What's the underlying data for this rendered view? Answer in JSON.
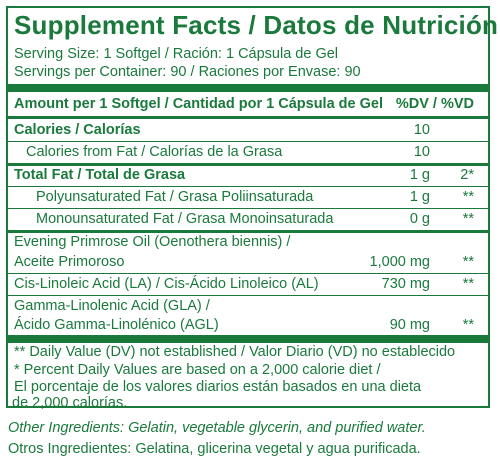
{
  "title": "Supplement Facts / Datos de Nutrición",
  "serving_size": "Serving Size: 1 Softgel / Ración: 1 Cápsula de Gel",
  "servings_per_container": "Servings per Container: 90 / Raciones por Envase: 90",
  "header": {
    "amount": "Amount per 1 Softgel / Cantidad por 1 Cápsula de Gel",
    "dv": "%DV / %VD"
  },
  "rows": [
    {
      "name": "Calories / Calorías",
      "amount": "10",
      "dv": ""
    },
    {
      "name": "Calories from Fat / Calorías de la Grasa",
      "amount": "10",
      "dv": ""
    },
    {
      "name": "Total Fat / Total de Grasa",
      "amount": "1 g",
      "dv": "2*"
    },
    {
      "name": "Polyunsaturated Fat / Grasa Poliinsaturada",
      "amount": "1 g",
      "dv": "**"
    },
    {
      "name": "Monounsaturated Fat / Grasa Monoinsaturada",
      "amount": "0 g",
      "dv": "**"
    },
    {
      "name": "Evening Primrose Oil (Oenothera biennis) /",
      "amount": "",
      "dv": ""
    },
    {
      "name": "Aceite Primoroso",
      "amount": "1,000 mg",
      "dv": "**"
    },
    {
      "name": "Cis-Linoleic Acid (LA) / Cis-Ácido Linoleico (AL)",
      "amount": "730 mg",
      "dv": "**"
    },
    {
      "name": "Gamma-Linolenic Acid (GLA) /",
      "amount": "",
      "dv": ""
    },
    {
      "name": "Ácido Gamma-Linolénico (AGL)",
      "amount": "90 mg",
      "dv": "**"
    }
  ],
  "footnotes": [
    "** Daily Value (DV) not established / Valor Diario (VD) no establecido",
    "* Percent Daily Values are based on a 2,000 calorie diet /",
    "El porcentaje de los valores diarios están basados en una dieta",
    "de 2,000 calorías."
  ],
  "other_ingredients_en": "Other Ingredients: Gelatin, vegetable glycerin, and purified water.",
  "other_ingredients_es": "Otros Ingredientes: Gelatina, glicerina vegetal y agua purificada.",
  "colors": {
    "label_green": "#1a7a3c",
    "background": "#ffffff"
  }
}
